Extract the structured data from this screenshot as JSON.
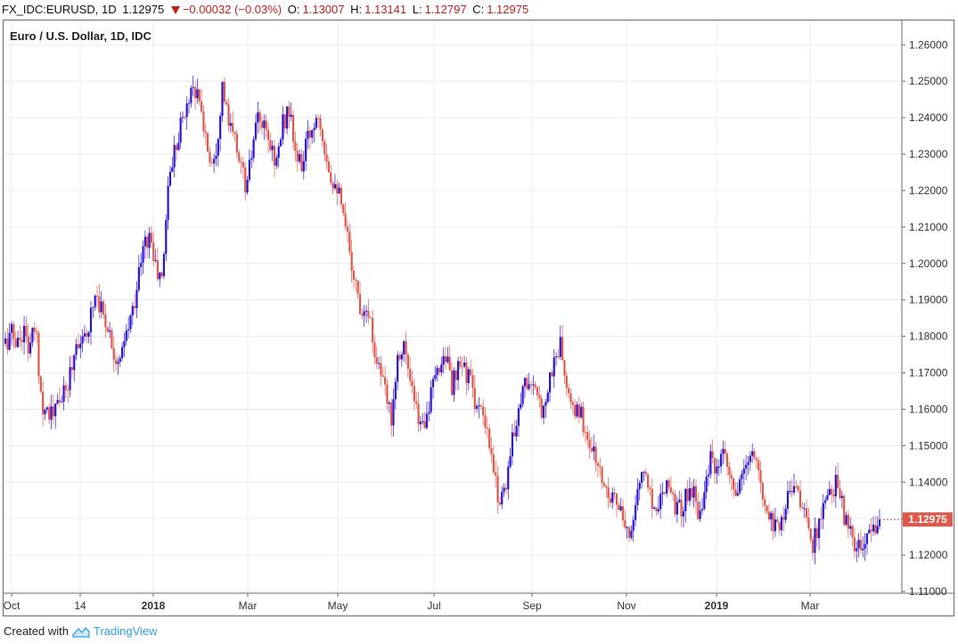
{
  "header": {
    "symbol": "FX_IDC:EURUSD, 1D",
    "last": "1.12975",
    "change": "−0.00032 (−0.03%)",
    "open_label": "O:",
    "open": "1.13007",
    "high_label": "H:",
    "high": "1.13141",
    "low_label": "L:",
    "low": "1.12797",
    "close_label": "C:",
    "close": "1.12975"
  },
  "footer": {
    "created_with": "Created with",
    "brand": "TradingView"
  },
  "colors": {
    "up": "#2b14d6",
    "down": "#e0584b",
    "grid": "#e6ecf2",
    "price_tag": "#e0584b"
  },
  "chart_data": {
    "type": "candlestick",
    "title": "Euro / U.S. Dollar, 1D, IDC",
    "ylim": [
      1.11,
      1.263
    ],
    "y_ticks": [
      "1.26000",
      "1.25000",
      "1.24000",
      "1.23000",
      "1.22000",
      "1.21000",
      "1.20000",
      "1.19000",
      "1.18000",
      "1.17000",
      "1.16000",
      "1.15000",
      "1.14000",
      "1.13000",
      "1.12000",
      "1.11000"
    ],
    "x_tick_labels": [
      {
        "label": "Oct",
        "bold": false
      },
      {
        "label": "14",
        "bold": false
      },
      {
        "label": "2018",
        "bold": true
      },
      {
        "label": "Mar",
        "bold": false
      },
      {
        "label": "May",
        "bold": false
      },
      {
        "label": "Jul",
        "bold": false
      },
      {
        "label": "Sep",
        "bold": false
      },
      {
        "label": "Nov",
        "bold": false
      },
      {
        "label": "2019",
        "bold": true
      },
      {
        "label": "Mar",
        "bold": false
      }
    ],
    "last_price_label": "1.12975",
    "last_price": 1.12975,
    "close_series": [
      1.178,
      1.181,
      1.178,
      1.182,
      1.176,
      1.183,
      1.162,
      1.16,
      1.158,
      1.163,
      1.164,
      1.172,
      1.18,
      1.177,
      1.185,
      1.193,
      1.187,
      1.183,
      1.176,
      1.172,
      1.18,
      1.186,
      1.196,
      1.205,
      1.208,
      1.198,
      1.195,
      1.222,
      1.231,
      1.238,
      1.242,
      1.25,
      1.245,
      1.237,
      1.228,
      1.232,
      1.249,
      1.238,
      1.234,
      1.228,
      1.22,
      1.232,
      1.24,
      1.236,
      1.232,
      1.228,
      1.238,
      1.243,
      1.231,
      1.226,
      1.233,
      1.238,
      1.242,
      1.232,
      1.224,
      1.222,
      1.212,
      1.205,
      1.195,
      1.187,
      1.19,
      1.178,
      1.172,
      1.164,
      1.158,
      1.174,
      1.179,
      1.168,
      1.16,
      1.155,
      1.16,
      1.166,
      1.172,
      1.176,
      1.166,
      1.17,
      1.172,
      1.168,
      1.162,
      1.158,
      1.152,
      1.142,
      1.135,
      1.14,
      1.15,
      1.16,
      1.167,
      1.168,
      1.163,
      1.16,
      1.166,
      1.173,
      1.178,
      1.167,
      1.158,
      1.161,
      1.155,
      1.15,
      1.146,
      1.14,
      1.138,
      1.136,
      1.132,
      1.124,
      1.13,
      1.138,
      1.144,
      1.136,
      1.132,
      1.139,
      1.141,
      1.134,
      1.132,
      1.137,
      1.138,
      1.132,
      1.138,
      1.146,
      1.142,
      1.147,
      1.142,
      1.136,
      1.139,
      1.146,
      1.148,
      1.141,
      1.134,
      1.13,
      1.128,
      1.131,
      1.138,
      1.141,
      1.134,
      1.128,
      1.123,
      1.129,
      1.134,
      1.136,
      1.142,
      1.131,
      1.126,
      1.122,
      1.121,
      1.124,
      1.128,
      1.12975
    ]
  }
}
